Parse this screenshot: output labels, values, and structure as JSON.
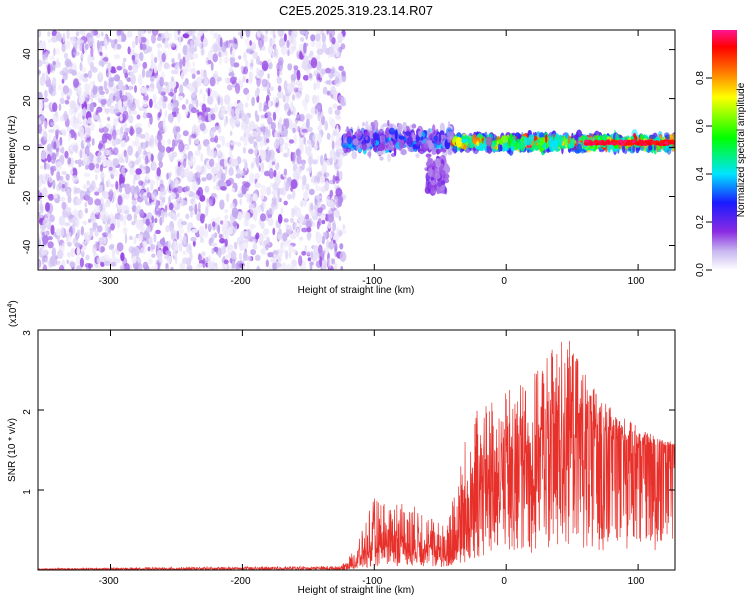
{
  "title": "C2E5.2025.319.23.14.R07",
  "colors": {
    "snr_line": "#e8302b",
    "colormap": [
      "#ffffff",
      "#c7b5f0",
      "#8a2be2",
      "#1a1aff",
      "#00e5ff",
      "#00ff00",
      "#ffff00",
      "#ff6600",
      "#ff0000",
      "#ff1493"
    ]
  },
  "chart_data": [
    {
      "type": "heatmap",
      "title": "C2E5.2025.319.23.14.R07",
      "xlabel": "Height of straight line (km)",
      "ylabel": "Frequency (Hz)",
      "xlim": [
        -355,
        128
      ],
      "ylim": [
        -50,
        48
      ],
      "xticks": [
        -300,
        -200,
        -100,
        0,
        100
      ],
      "yticks": [
        -40,
        -20,
        0,
        20,
        40
      ],
      "grid": false,
      "colorbar": {
        "label": "Normalized spectral amplitude",
        "range": [
          0.0,
          1.0
        ],
        "ticks": [
          "0.0",
          "0.2",
          "0.4",
          "0.6",
          "0.8"
        ]
      },
      "regions": [
        {
          "x_range": [
            -355,
            -123
          ],
          "freq_range": [
            -50,
            48
          ],
          "amplitude": [
            0.02,
            0.15
          ],
          "description": "broadband noise"
        },
        {
          "x_range": [
            -123,
            -40
          ],
          "freq_center": 3,
          "freq_halfwidth": 8,
          "amplitude": [
            0.1,
            0.4
          ]
        },
        {
          "x_range": [
            -60,
            -45
          ],
          "freq_range": [
            -18,
            -5
          ],
          "amplitude": [
            0.1,
            0.2
          ]
        },
        {
          "x_range": [
            -40,
            128
          ],
          "freq_center": 2,
          "freq_halfwidth": 4,
          "amplitude": [
            0.4,
            1.0
          ]
        }
      ]
    },
    {
      "type": "line",
      "xlabel": "Height of straight line (km)",
      "ylabel": "SNR (10 * v/v)",
      "y_multiplier": "(x10^4)",
      "xlim": [
        -355,
        128
      ],
      "ylim": [
        0,
        3.0
      ],
      "xticks": [
        -300,
        -200,
        -100,
        0,
        100
      ],
      "yticks": [
        1,
        2,
        3
      ],
      "series": [
        {
          "x": [
            -355,
            -125,
            -115,
            -100,
            -90,
            -75,
            -60,
            -45,
            -35,
            -25,
            -10,
            0,
            10,
            25,
            35,
            45,
            55,
            70,
            90,
            110,
            128
          ],
          "mean": [
            0.01,
            0.02,
            0.08,
            0.3,
            0.32,
            0.35,
            0.3,
            0.2,
            0.4,
            0.9,
            1.1,
            1.2,
            1.3,
            1.5,
            1.7,
            1.8,
            1.75,
            1.65,
            1.6,
            1.55,
            1.55
          ],
          "peak": [
            0.02,
            0.05,
            0.25,
            0.9,
            0.85,
            0.85,
            0.7,
            0.55,
            1.5,
            2.0,
            2.1,
            2.3,
            2.4,
            2.5,
            2.8,
            3.0,
            2.6,
            2.2,
            1.9,
            1.7,
            1.6
          ]
        }
      ]
    }
  ],
  "panel1": {
    "xlabel": "Height of straight line (km)",
    "ylabel": "Frequency (Hz)",
    "xticks": [
      "-300",
      "-200",
      "-100",
      "0",
      "100"
    ],
    "yticks": [
      "40",
      "20",
      "0",
      "-20",
      "-40"
    ]
  },
  "panel2": {
    "xlabel": "Height of straight line (km)",
    "ylabel": "SNR (10 * v/v)",
    "multiplier_base": "(x10",
    "multiplier_exp": "4",
    "multiplier_close": ")",
    "xticks": [
      "-300",
      "-200",
      "-100",
      "0",
      "100"
    ],
    "yticks": [
      "3",
      "2",
      "1"
    ]
  },
  "colorbar": {
    "label": "Normalized spectral amplitude",
    "ticks": [
      "0.0",
      "0.2",
      "0.4",
      "0.6",
      "0.8"
    ]
  }
}
